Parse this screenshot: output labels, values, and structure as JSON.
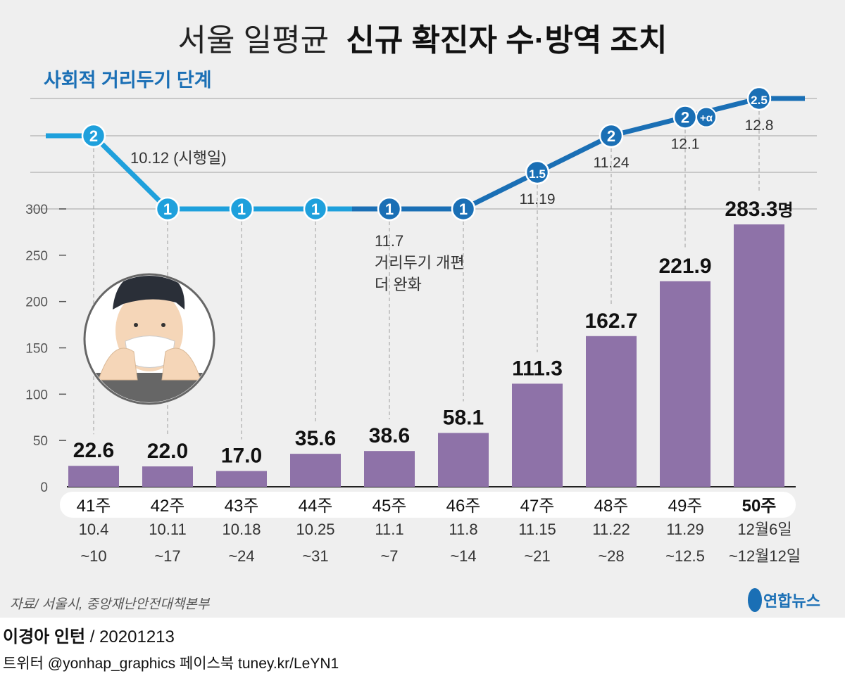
{
  "title": {
    "light": "서울 일평균",
    "bold": "신규 확진자 수·방역 조치"
  },
  "distancing_label": "사회적 거리두기 단계",
  "annotations": {
    "start": "10.12 (시행일)",
    "revision_date": "11.7",
    "revision_line1": "거리두기 개편",
    "revision_line2": "더 완화"
  },
  "colors": {
    "bar": "#8e72a8",
    "line_light": "#1ea0dc",
    "line_dark": "#1a6fb5",
    "title_blue": "#1a6fb5",
    "background": "#efefef"
  },
  "chart_data": {
    "type": "bar",
    "ylim": [
      0,
      300
    ],
    "yticks": [
      "0",
      "50",
      "100",
      "150",
      "200",
      "250",
      "300"
    ],
    "unit": "명",
    "categories": [
      "41주",
      "42주",
      "43주",
      "44주",
      "45주",
      "46주",
      "47주",
      "48주",
      "49주",
      "50주"
    ],
    "date_line1": [
      "10.4",
      "10.11",
      "10.18",
      "10.25",
      "11.1",
      "11.8",
      "11.15",
      "11.22",
      "11.29",
      "12월6일"
    ],
    "date_line2": [
      "~10",
      "~17",
      "~24",
      "~31",
      "~7",
      "~14",
      "~21",
      "~28",
      "~12.5",
      "~12월12일"
    ],
    "values": [
      22.6,
      22.0,
      17.0,
      35.6,
      38.6,
      58.1,
      111.3,
      162.7,
      221.9,
      283.3
    ],
    "value_labels": [
      "22.6",
      "22.0",
      "17.0",
      "35.6",
      "38.6",
      "58.1",
      "111.3",
      "162.7",
      "221.9",
      "283.3"
    ],
    "distancing_levels": [
      {
        "level": 2,
        "label": "2",
        "date": ""
      },
      {
        "level": 1,
        "label": "1",
        "date": ""
      },
      {
        "level": 1,
        "label": "1",
        "date": ""
      },
      {
        "level": 1,
        "label": "1",
        "date": ""
      },
      {
        "level": 1,
        "label": "1",
        "date": ""
      },
      {
        "level": 1,
        "label": "1",
        "date": ""
      },
      {
        "level": 1.5,
        "label": "1.5",
        "date": "11.19"
      },
      {
        "level": 2,
        "label": "2",
        "date": "11.24"
      },
      {
        "level": 2.25,
        "label": "2",
        "extra": "+α",
        "date": "12.1"
      },
      {
        "level": 2.5,
        "label": "2.5",
        "date": "12.8"
      }
    ]
  },
  "source": "자료/ 서울시, 중앙재난안전대책본부",
  "logo": "연합뉴스",
  "credit": {
    "author": "이경아 인턴",
    "date": " / 20201213"
  },
  "social": "트위터 @yonhap_graphics  페이스북 tuney.kr/LeYN1"
}
